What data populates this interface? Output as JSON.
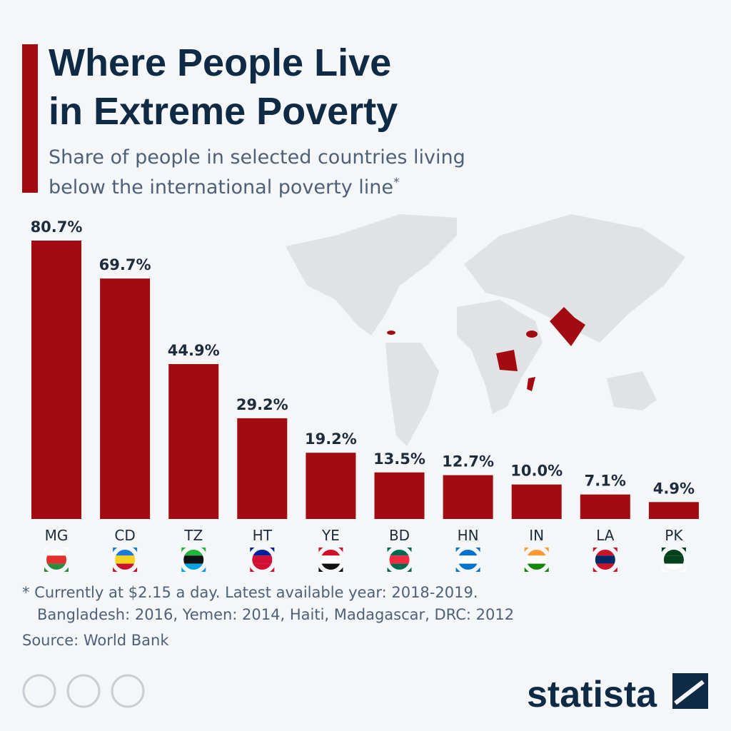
{
  "chart_data": {
    "type": "bar",
    "title": [
      "Where People Live",
      "in Extreme Poverty"
    ],
    "subtitle": [
      "Share of people in selected countries living",
      "below the international poverty line"
    ],
    "subtitle_marker": "*",
    "categories": [
      "MG",
      "CD",
      "TZ",
      "HT",
      "YE",
      "BD",
      "HN",
      "IN",
      "LA",
      "PK"
    ],
    "values": [
      80.7,
      69.7,
      44.9,
      29.2,
      19.2,
      13.5,
      12.7,
      10.0,
      7.1,
      4.9
    ],
    "value_labels": [
      "80.7%",
      "69.7%",
      "44.9%",
      "29.2%",
      "19.2%",
      "13.5%",
      "12.7%",
      "10.0%",
      "7.1%",
      "4.9%"
    ],
    "color": "#a30b12",
    "footnote": [
      "* Currently at $2.15 a day. Latest available year: 2018-2019.",
      "Bangladesh: 2016, Yemen: 2014, Haiti, Madagascar, DRC: 2012"
    ],
    "source": "Source: World Bank",
    "logo": "statista"
  }
}
